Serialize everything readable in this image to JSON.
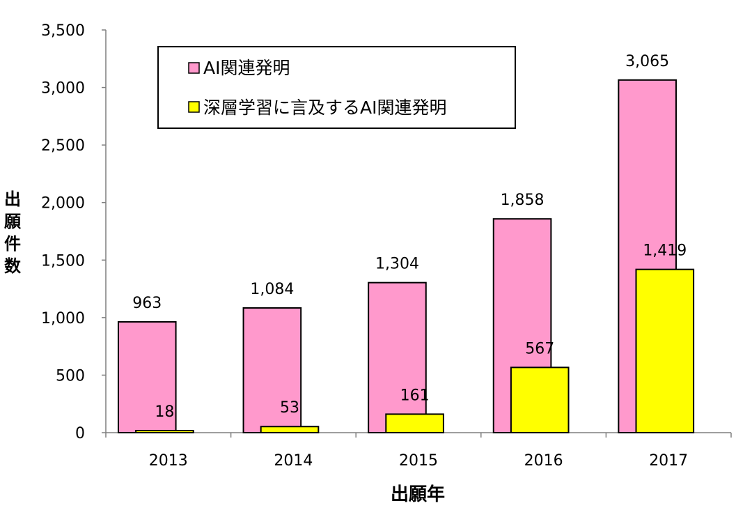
{
  "chart_data": {
    "type": "bar",
    "categories": [
      "2013",
      "2014",
      "2015",
      "2016",
      "2017"
    ],
    "series": [
      {
        "name": "AI関連発明",
        "values": [
          963,
          1084,
          1304,
          1858,
          3065
        ],
        "color": "#FF99CC"
      },
      {
        "name": "深層学習に言及するAI関連発明",
        "values": [
          18,
          53,
          161,
          567,
          1419
        ],
        "color": "#FFFF00"
      }
    ],
    "data_labels": {
      "series_0": [
        "963",
        "1,084",
        "1,304",
        "1,858",
        "3,065"
      ],
      "series_1": [
        "18",
        "53",
        "161",
        "567",
        "1,419"
      ]
    },
    "xlabel": "出願年",
    "ylabel": "出願件数",
    "ylim": [
      0,
      3500
    ],
    "yticks": [
      0,
      500,
      1000,
      1500,
      2000,
      2500,
      3000,
      3500
    ],
    "ytick_labels": [
      "0",
      "500",
      "1,000",
      "1,500",
      "2,000",
      "2,500",
      "3,000",
      "3,500"
    ],
    "grid": false,
    "legend_position": "top-left"
  }
}
